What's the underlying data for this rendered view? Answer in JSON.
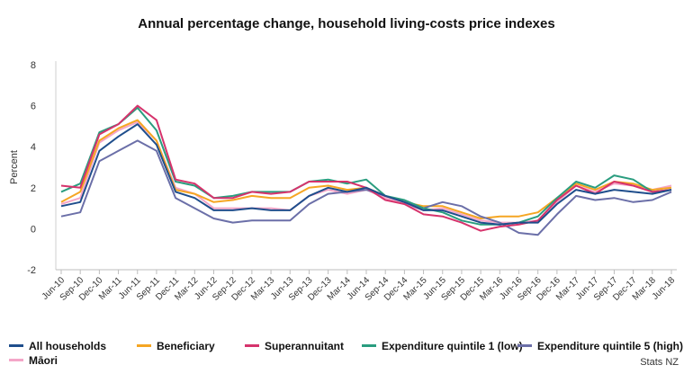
{
  "chart_data": {
    "type": "line",
    "title": "Annual percentage change, household living-costs price indexes",
    "ylabel": "Percent",
    "xlabel": "",
    "ylim": [
      -2,
      8
    ],
    "yticks": [
      -2,
      0,
      2,
      4,
      6,
      8
    ],
    "grid": false,
    "legend_position": "bottom",
    "source": "Stats NZ",
    "x": [
      "Jun-10",
      "Sep-10",
      "Dec-10",
      "Mar-11",
      "Jun-11",
      "Sep-11",
      "Dec-11",
      "Mar-12",
      "Jun-12",
      "Sep-12",
      "Dec-12",
      "Mar-13",
      "Jun-13",
      "Sep-13",
      "Dec-13",
      "Mar-14",
      "Jun-14",
      "Sep-14",
      "Dec-14",
      "Mar-15",
      "Jun-15",
      "Sep-15",
      "Dec-15",
      "Mar-16",
      "Jun-16",
      "Sep-16",
      "Dec-16",
      "Mar-17",
      "Jun-17",
      "Sep-17",
      "Dec-17",
      "Mar-18",
      "Jun-18"
    ],
    "series": [
      {
        "name": "All households",
        "color": "#1f4e8c",
        "values": [
          1.1,
          1.3,
          3.8,
          4.5,
          5.1,
          4.1,
          1.8,
          1.5,
          0.9,
          0.9,
          1.0,
          0.9,
          0.9,
          1.6,
          2.0,
          1.8,
          2.0,
          1.6,
          1.3,
          0.9,
          0.9,
          0.6,
          0.3,
          0.2,
          0.3,
          0.3,
          1.2,
          1.9,
          1.7,
          1.9,
          1.8,
          1.7,
          1.9
        ]
      },
      {
        "name": "Beneficiary",
        "color": "#f5a623",
        "values": [
          1.3,
          1.8,
          4.3,
          4.9,
          5.3,
          4.3,
          1.9,
          1.7,
          1.3,
          1.4,
          1.6,
          1.5,
          1.5,
          2.0,
          2.1,
          1.9,
          2.0,
          1.6,
          1.3,
          1.1,
          1.1,
          0.8,
          0.5,
          0.6,
          0.6,
          0.8,
          1.5,
          2.2,
          1.9,
          2.3,
          2.2,
          1.9,
          2.0
        ]
      },
      {
        "name": "Superannuitant",
        "color": "#d6336c",
        "values": [
          2.1,
          2.0,
          4.6,
          5.1,
          6.0,
          5.3,
          2.4,
          2.2,
          1.5,
          1.5,
          1.8,
          1.7,
          1.8,
          2.3,
          2.3,
          2.3,
          2.0,
          1.4,
          1.2,
          0.7,
          0.6,
          0.3,
          -0.1,
          0.1,
          0.2,
          0.4,
          1.4,
          2.1,
          1.7,
          2.3,
          2.1,
          1.8,
          1.9
        ]
      },
      {
        "name": "Expenditure quintile 1 (low)",
        "color": "#2a9d7f",
        "values": [
          1.8,
          2.2,
          4.7,
          5.1,
          5.9,
          4.8,
          2.3,
          2.1,
          1.5,
          1.6,
          1.8,
          1.8,
          1.8,
          2.3,
          2.4,
          2.2,
          2.4,
          1.6,
          1.4,
          1.0,
          0.8,
          0.4,
          0.2,
          0.2,
          0.3,
          0.6,
          1.5,
          2.3,
          2.0,
          2.6,
          2.4,
          1.8,
          1.9
        ]
      },
      {
        "name": "Expenditure quintile 5 (high)",
        "color": "#6b6fa8",
        "values": [
          0.6,
          0.8,
          3.3,
          3.8,
          4.3,
          3.8,
          1.5,
          1.0,
          0.5,
          0.3,
          0.4,
          0.4,
          0.4,
          1.2,
          1.7,
          1.8,
          1.9,
          1.6,
          1.3,
          1.0,
          1.3,
          1.1,
          0.6,
          0.3,
          -0.2,
          -0.3,
          0.7,
          1.6,
          1.4,
          1.5,
          1.3,
          1.4,
          1.8
        ]
      },
      {
        "name": "Māori",
        "color": "#f4a6c8",
        "values": [
          1.2,
          1.5,
          4.2,
          4.8,
          5.2,
          4.3,
          2.0,
          1.7,
          1.0,
          1.0,
          1.0,
          1.0,
          0.9,
          1.6,
          1.9,
          1.7,
          1.9,
          1.5,
          1.2,
          0.9,
          1.0,
          0.7,
          0.4,
          0.3,
          0.3,
          0.4,
          1.3,
          2.1,
          1.8,
          2.2,
          2.1,
          1.9,
          2.1
        ]
      }
    ]
  }
}
